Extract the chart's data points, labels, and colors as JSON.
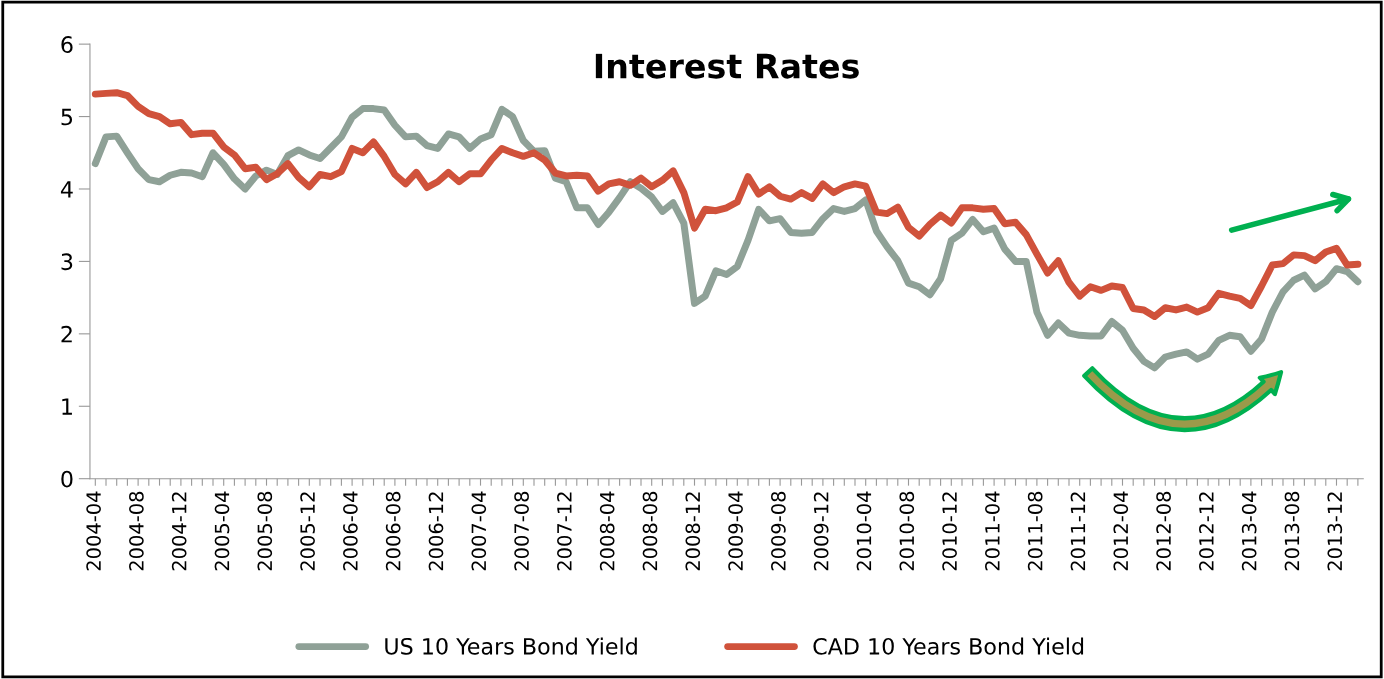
{
  "chart_data": {
    "type": "line",
    "title": "Interest Rates",
    "categories": [
      "2004-04",
      null,
      null,
      null,
      "2004-08",
      null,
      null,
      null,
      "2004-12",
      null,
      null,
      null,
      "2005-04",
      null,
      null,
      null,
      "2005-08",
      null,
      null,
      null,
      "2005-12",
      null,
      null,
      null,
      "2006-04",
      null,
      null,
      null,
      "2006-08",
      null,
      null,
      null,
      "2006-12",
      null,
      null,
      null,
      "2007-04",
      null,
      null,
      null,
      "2007-08",
      null,
      null,
      null,
      "2007-12",
      null,
      null,
      null,
      "2008-04",
      null,
      null,
      null,
      "2008-08",
      null,
      null,
      null,
      "2008-12",
      null,
      null,
      null,
      "2009-04",
      null,
      null,
      null,
      "2009-08",
      null,
      null,
      null,
      "2009-12",
      null,
      null,
      null,
      "2010-04",
      null,
      null,
      null,
      "2010-08",
      null,
      null,
      null,
      "2010-12",
      null,
      null,
      null,
      "2011-04",
      null,
      null,
      null,
      "2011-08",
      null,
      null,
      null,
      "2011-12",
      null,
      null,
      null,
      "2012-04",
      null,
      null,
      null,
      "2012-08",
      null,
      null,
      null,
      "2012-12",
      null,
      null,
      null,
      "2013-04",
      null,
      null,
      null,
      "2013-08",
      null,
      null,
      null,
      "2013-12",
      null,
      null
    ],
    "series": [
      {
        "name": "US 10 Years Bond Yield",
        "color": "#8fa197",
        "values": [
          4.35,
          4.72,
          4.73,
          4.5,
          4.28,
          4.13,
          4.1,
          4.19,
          4.23,
          4.22,
          4.17,
          4.5,
          4.34,
          4.14,
          4.0,
          4.18,
          4.26,
          4.2,
          4.46,
          4.54,
          4.47,
          4.42,
          4.57,
          4.72,
          4.99,
          5.11,
          5.11,
          5.09,
          4.88,
          4.72,
          4.73,
          4.6,
          4.56,
          4.76,
          4.72,
          4.56,
          4.69,
          4.75,
          5.1,
          5.0,
          4.67,
          4.52,
          4.53,
          4.15,
          4.1,
          3.74,
          3.74,
          3.51,
          3.68,
          3.88,
          4.1,
          4.01,
          3.89,
          3.69,
          3.81,
          3.53,
          2.42,
          2.52,
          2.87,
          2.82,
          2.93,
          3.29,
          3.72,
          3.56,
          3.59,
          3.4,
          3.39,
          3.4,
          3.59,
          3.73,
          3.69,
          3.73,
          3.85,
          3.42,
          3.2,
          3.01,
          2.7,
          2.65,
          2.54,
          2.76,
          3.29,
          3.39,
          3.58,
          3.41,
          3.46,
          3.17,
          3.0,
          3.0,
          2.3,
          1.98,
          2.15,
          2.01,
          1.98,
          1.97,
          1.97,
          2.17,
          2.05,
          1.8,
          1.62,
          1.53,
          1.68,
          1.72,
          1.75,
          1.65,
          1.72,
          1.91,
          1.98,
          1.96,
          1.76,
          1.93,
          2.3,
          2.58,
          2.74,
          2.81,
          2.62,
          2.72,
          2.9,
          2.86,
          2.72
        ]
      },
      {
        "name": "CAD 10 Years Bond Yield",
        "color": "#d0523b",
        "values": [
          5.31,
          5.32,
          5.33,
          5.29,
          5.14,
          5.04,
          5.0,
          4.9,
          4.92,
          4.75,
          4.77,
          4.77,
          4.58,
          4.47,
          4.28,
          4.3,
          4.13,
          4.21,
          4.35,
          4.16,
          4.03,
          4.2,
          4.17,
          4.24,
          4.56,
          4.5,
          4.65,
          4.45,
          4.2,
          4.07,
          4.23,
          4.02,
          4.1,
          4.23,
          4.1,
          4.21,
          4.21,
          4.4,
          4.56,
          4.5,
          4.45,
          4.5,
          4.4,
          4.22,
          4.18,
          4.19,
          4.18,
          3.97,
          4.07,
          4.1,
          4.05,
          4.15,
          4.03,
          4.12,
          4.25,
          3.95,
          3.46,
          3.72,
          3.7,
          3.74,
          3.82,
          4.17,
          3.93,
          4.03,
          3.9,
          3.86,
          3.95,
          3.87,
          4.07,
          3.95,
          4.03,
          4.07,
          4.04,
          3.68,
          3.66,
          3.75,
          3.47,
          3.35,
          3.51,
          3.64,
          3.53,
          3.74,
          3.74,
          3.72,
          3.73,
          3.52,
          3.54,
          3.37,
          3.1,
          2.84,
          3.01,
          2.71,
          2.52,
          2.65,
          2.6,
          2.66,
          2.64,
          2.35,
          2.33,
          2.24,
          2.36,
          2.33,
          2.37,
          2.3,
          2.36,
          2.56,
          2.52,
          2.49,
          2.39,
          2.66,
          2.95,
          2.97,
          3.09,
          3.08,
          3.01,
          3.13,
          3.18,
          2.95,
          2.96
        ]
      }
    ],
    "ylim": [
      0,
      6
    ],
    "yticks": [
      0,
      1,
      2,
      3,
      4,
      5,
      6
    ],
    "grid": false,
    "legend": "bottom",
    "marker": "none",
    "line_style": "solid"
  }
}
